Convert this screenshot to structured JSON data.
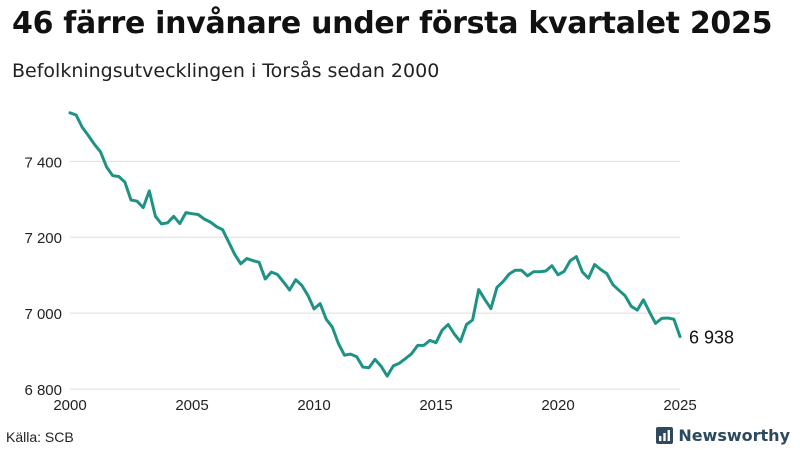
{
  "header": {
    "title": "46 färre invånare under första kvartalet 2025",
    "subtitle": "Befolkningsutvecklingen i Torsås sedan 2000"
  },
  "footer": {
    "source": "Källa: SCB",
    "brand": "Newsworthy"
  },
  "colors": {
    "line": "#1e9384",
    "grid": "#dddddd",
    "brand": "#2f4a5c"
  },
  "chart_data": {
    "type": "line",
    "title": "46 färre invånare under första kvartalet 2025",
    "subtitle": "Befolkningsutvecklingen i Torsås sedan 2000",
    "xlabel": "",
    "ylabel": "",
    "xlim": [
      2000,
      2025
    ],
    "ylim": [
      6800,
      7530
    ],
    "grid": "horizontal",
    "x_ticks": [
      2000,
      2005,
      2010,
      2015,
      2020,
      2025
    ],
    "x_tick_labels": [
      "2000",
      "2005",
      "2010",
      "2015",
      "2020",
      "2025"
    ],
    "y_ticks": [
      6800,
      7000,
      7200,
      7400
    ],
    "y_tick_labels": [
      "6 800",
      "7 000",
      "7 200",
      "7 400"
    ],
    "end_label": "6 938",
    "series": [
      {
        "x_start": 2000,
        "x_step": 0.25,
        "values": [
          7528,
          7522,
          7490,
          7468,
          7445,
          7425,
          7385,
          7362,
          7360,
          7345,
          7298,
          7295,
          7278,
          7322,
          7255,
          7235,
          7238,
          7255,
          7236,
          7265,
          7262,
          7260,
          7248,
          7240,
          7228,
          7220,
          7188,
          7155,
          7130,
          7144,
          7138,
          7134,
          7090,
          7108,
          7102,
          7082,
          7061,
          7088,
          7073,
          7047,
          7011,
          7025,
          6984,
          6963,
          6920,
          6889,
          6892,
          6885,
          6858,
          6856,
          6878,
          6860,
          6834,
          6861,
          6868,
          6880,
          6893,
          6915,
          6915,
          6928,
          6922,
          6955,
          6970,
          6945,
          6925,
          6970,
          6982,
          7062,
          7036,
          7012,
          7068,
          7083,
          7103,
          7113,
          7113,
          7098,
          7109,
          7109,
          7111,
          7125,
          7101,
          7110,
          7138,
          7149,
          7108,
          7092,
          7128,
          7115,
          7104,
          7075,
          7060,
          7046,
          7018,
          7008,
          7035,
          7003,
          6973,
          6986,
          6987,
          6984,
          6938
        ]
      }
    ]
  }
}
